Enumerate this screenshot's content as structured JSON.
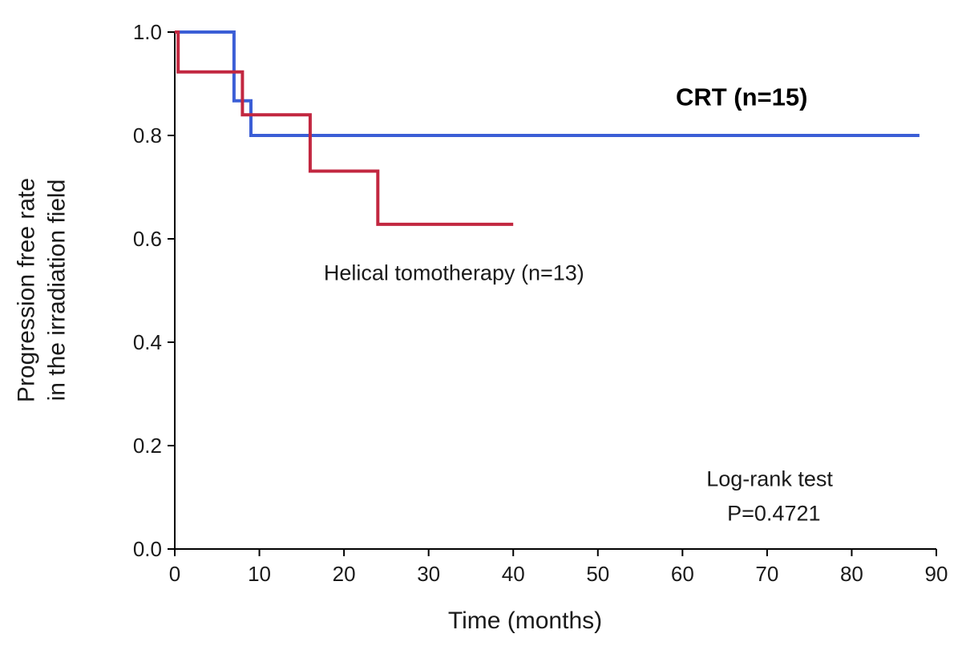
{
  "chart_data": {
    "type": "line",
    "subtype": "kaplan-meier-step",
    "title": "",
    "xlabel": "Time (months)",
    "ylabel_line1": "Progression free rate",
    "ylabel_line2": "in the irradiation field",
    "xlim": [
      0,
      90
    ],
    "ylim": [
      0.0,
      1.0
    ],
    "xticks": [
      0,
      10,
      20,
      30,
      40,
      50,
      60,
      70,
      80,
      90
    ],
    "yticks": [
      0.0,
      0.2,
      0.4,
      0.6,
      0.8,
      1.0
    ],
    "grid": false,
    "legend_position": "inline-annotations",
    "series": [
      {
        "name": "CRT (n=15)",
        "color": "#3b5ed6",
        "points": [
          [
            0,
            1.0
          ],
          [
            7,
            1.0
          ],
          [
            7,
            0.867
          ],
          [
            9,
            0.867
          ],
          [
            9,
            0.8
          ],
          [
            88,
            0.8
          ]
        ]
      },
      {
        "name": "Helical tomotherapy (n=13)",
        "color": "#c22740",
        "points": [
          [
            0,
            1.0
          ],
          [
            0.4,
            1.0
          ],
          [
            0.4,
            0.923
          ],
          [
            8,
            0.923
          ],
          [
            8,
            0.84
          ],
          [
            16,
            0.84
          ],
          [
            16,
            0.731
          ],
          [
            24,
            0.731
          ],
          [
            24,
            0.628
          ],
          [
            40,
            0.628
          ]
        ]
      }
    ],
    "annotations": [
      {
        "text": "CRT (n=15)",
        "x": 67,
        "y": 0.858,
        "bold": true,
        "size": 31,
        "color": "#000000"
      },
      {
        "text": "Helical tomotherapy (n=13)",
        "x": 33,
        "y": 0.52,
        "bold": false,
        "size": 27,
        "color": "#1a1a1a"
      },
      {
        "text": "Log-rank test",
        "x": 70.3,
        "y": 0.122,
        "bold": false,
        "size": 27,
        "color": "#1a1a1a"
      },
      {
        "text": "P=0.4721",
        "x": 70.8,
        "y": 0.055,
        "bold": false,
        "size": 27,
        "color": "#1a1a1a"
      }
    ]
  }
}
